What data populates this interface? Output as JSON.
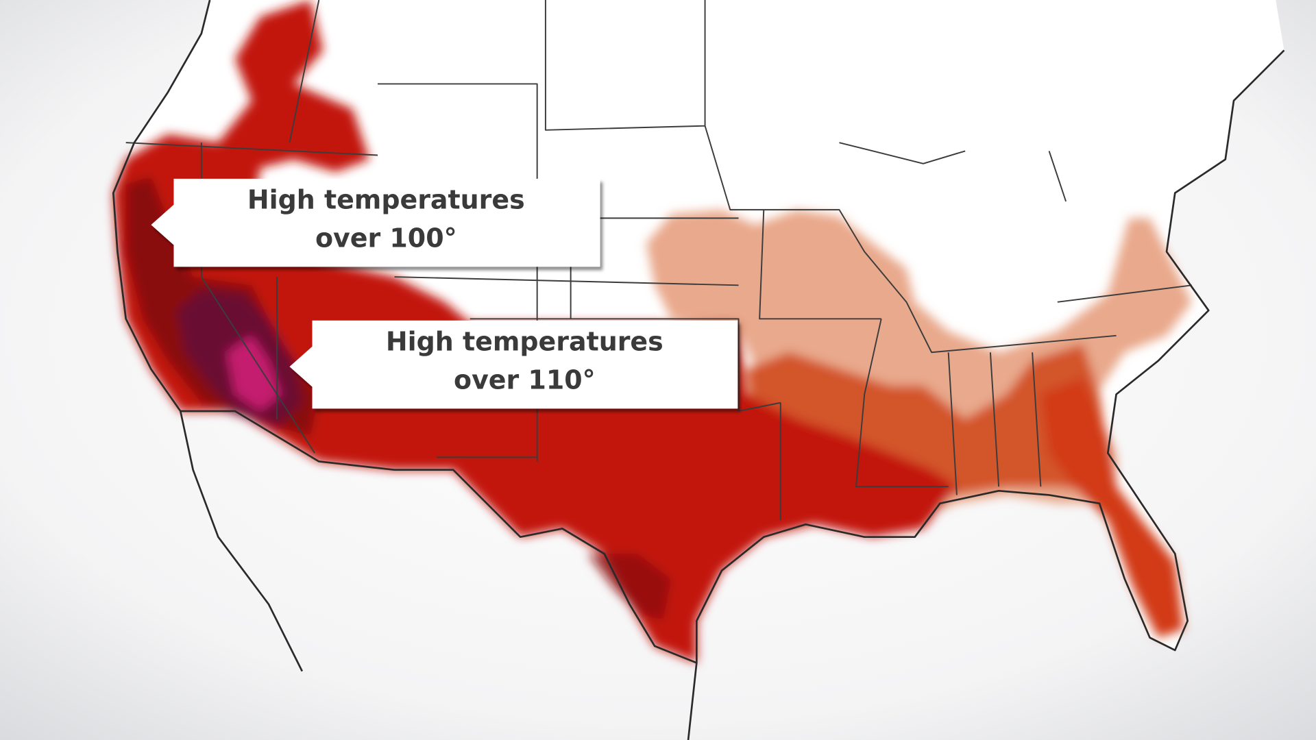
{
  "callouts": [
    {
      "lines": [
        "High temperatures",
        "over 100°"
      ]
    },
    {
      "lines": [
        "High temperatures",
        "over 110°"
      ]
    }
  ]
}
